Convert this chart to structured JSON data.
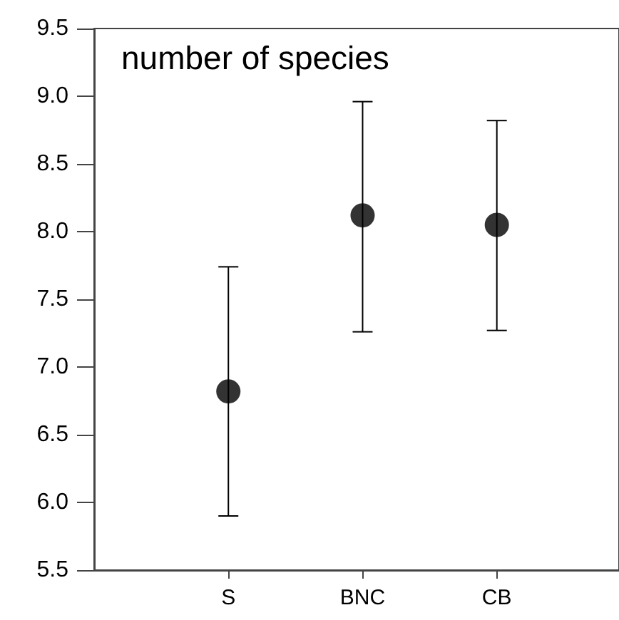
{
  "chart_data": {
    "type": "scatter",
    "title": "number of species",
    "categories": [
      "S",
      "BNC",
      "CB"
    ],
    "values": [
      6.82,
      8.12,
      8.05
    ],
    "errors": [
      [
        5.9,
        7.74
      ],
      [
        7.26,
        8.96
      ],
      [
        7.27,
        8.82
      ]
    ],
    "color": "#000000",
    "marker": "circle",
    "ylim": [
      5.5,
      9.5
    ],
    "yticks": [
      5.5,
      {
        "value": 6,
        "label": "6.0"
      },
      6.5,
      {
        "value": 7,
        "label": "7.0"
      },
      7.5,
      {
        "value": 8,
        "label": "8.0"
      },
      8.5,
      {
        "value": 9,
        "label": "9.0"
      },
      9.5
    ],
    "grid": false
  }
}
